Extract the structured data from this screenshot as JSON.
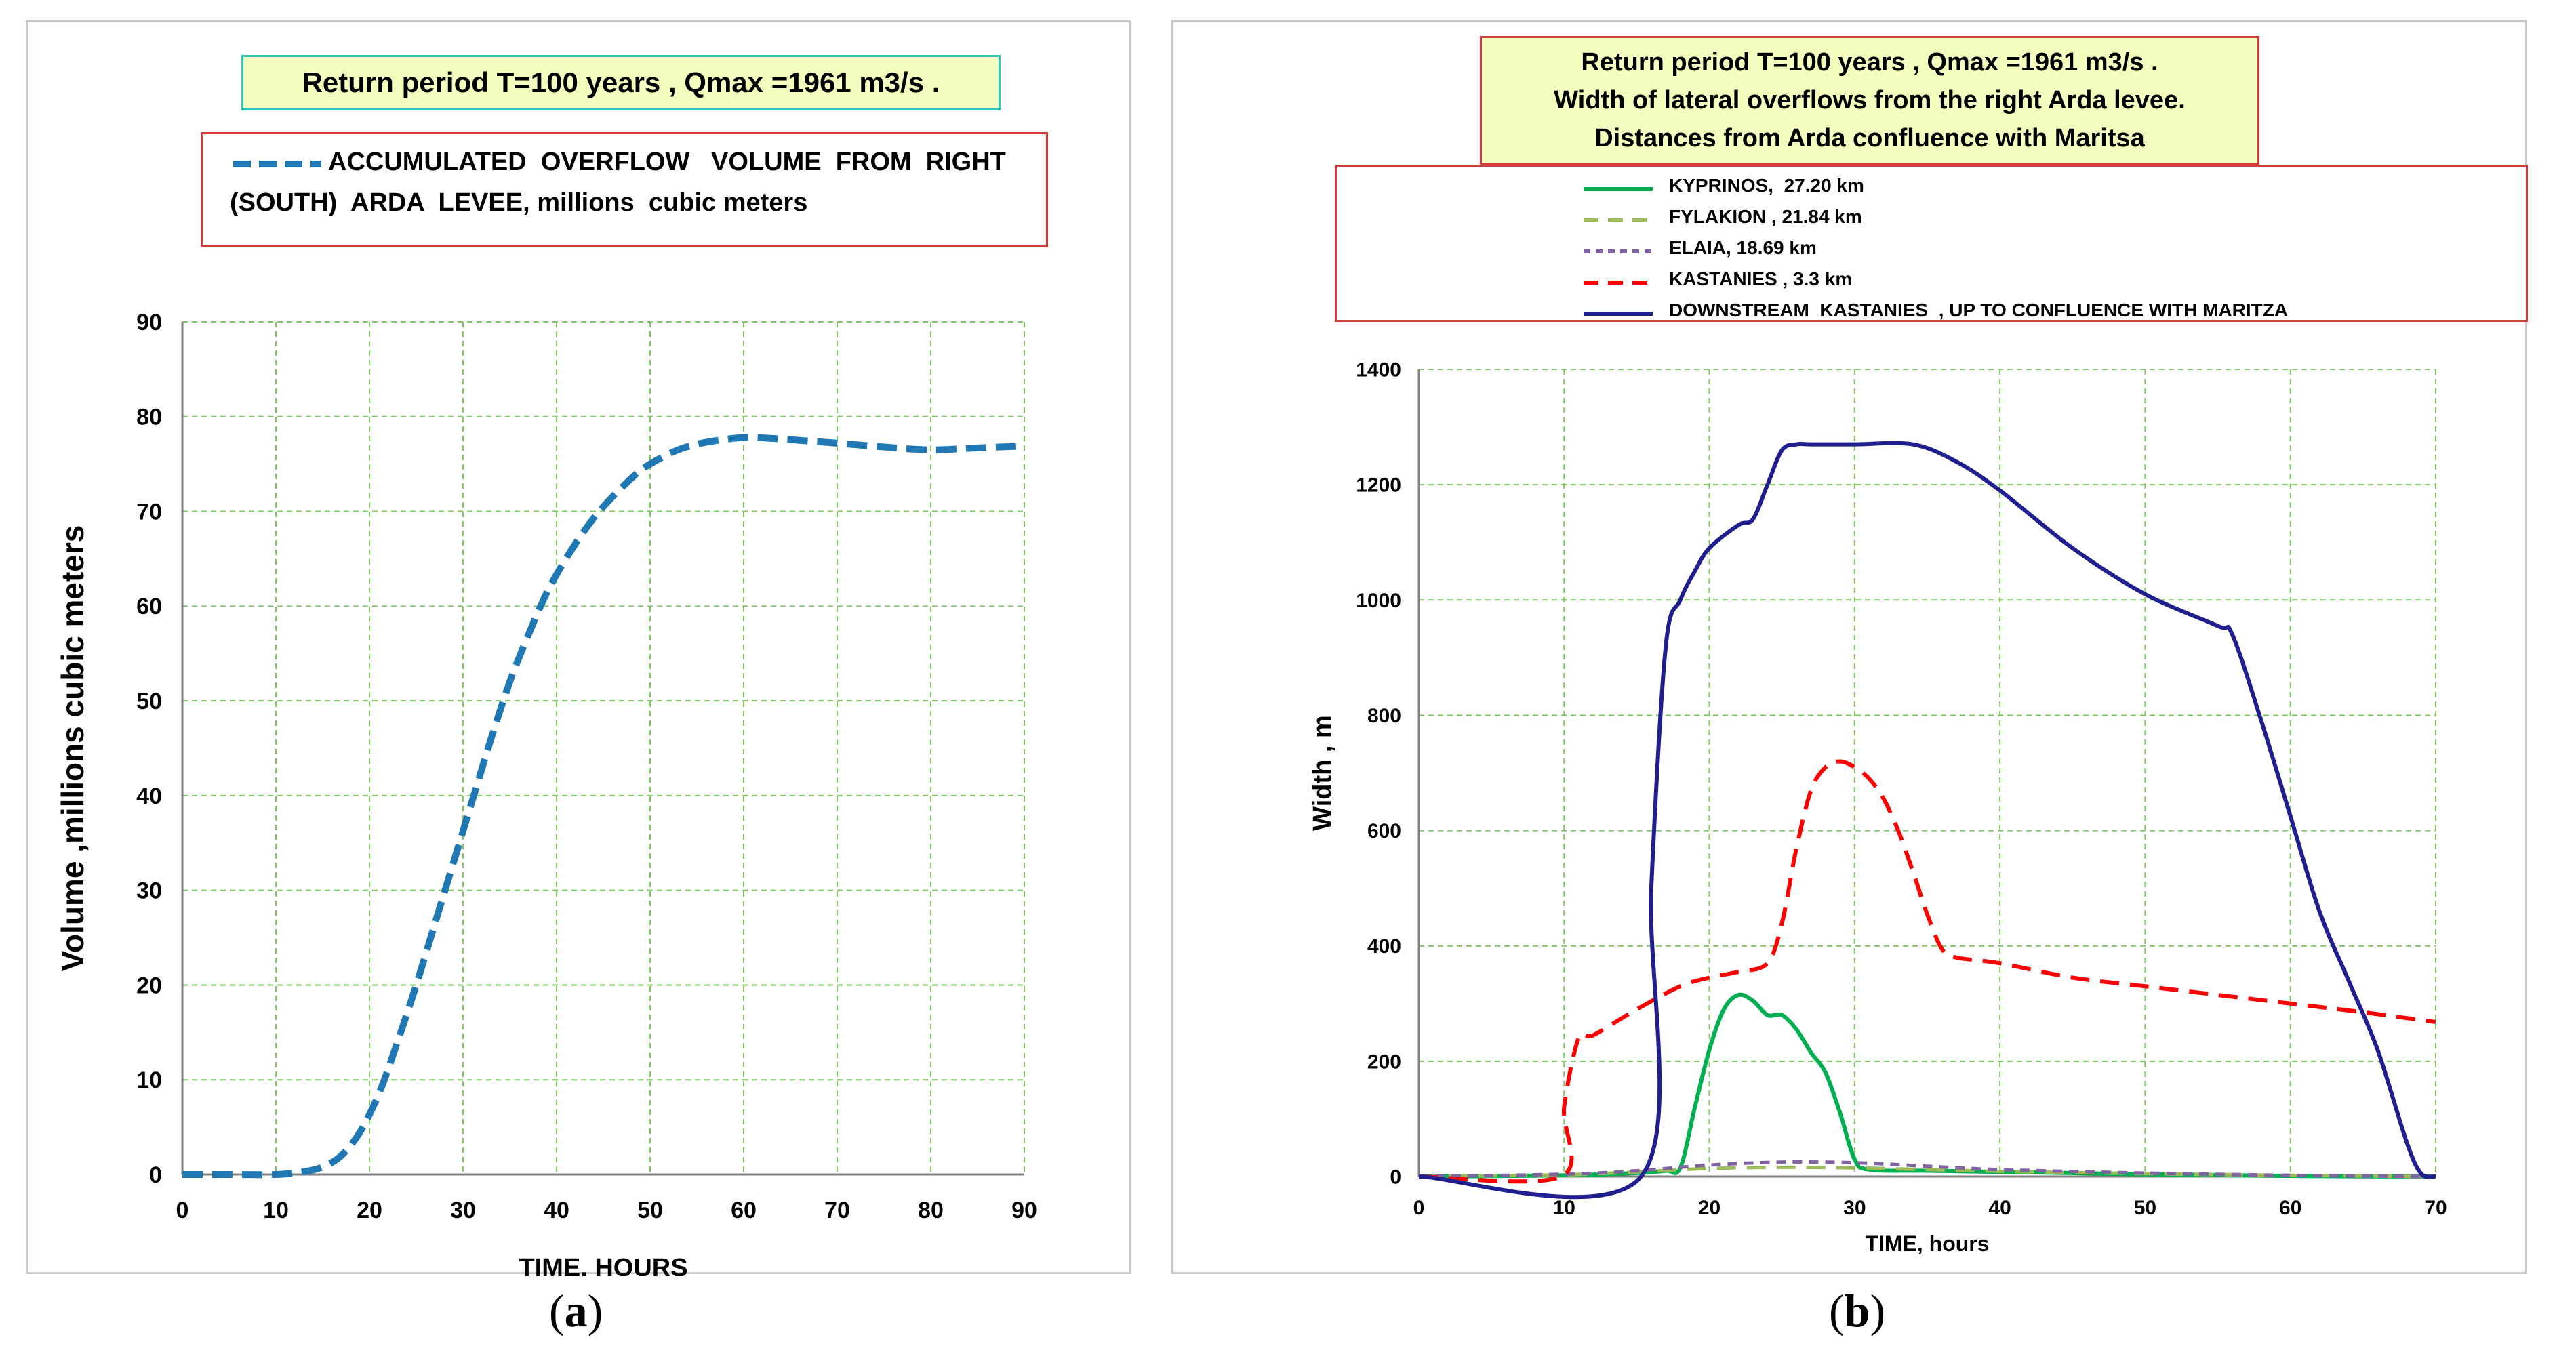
{
  "panel_a": {
    "caption_letter": "a",
    "title": "Return period  T=100 years  , Qmax =1961 m3/s .",
    "legend": {
      "line1": "ACCUMULATED  OVERFLOW   VOLUME  FROM  RIGHT",
      "line2": "(SOUTH)  ARDA  LEVEE, millions  cubic meters"
    }
  },
  "panel_b": {
    "caption_letter": "b",
    "title_lines": [
      "Return period  T=100 years  , Qmax =1961 m3/s .",
      "Width  of  lateral  overflows from the  right   Arda levee.",
      "Distances from  Arda confluence  with Maritsa"
    ]
  },
  "colors": {
    "accent_dashed_blue": "#1f77b4",
    "green": "#00b050",
    "olive": "#9bbb59",
    "purple": "#8064a2",
    "red": "#ff0000",
    "navy": "#1f1f8f",
    "grid": "#7dc95e"
  },
  "chart_data": [
    {
      "type": "line",
      "title": "Return period  T=100 years  , Qmax =1961 m3/s .",
      "xlabel": "TIME, HOURS",
      "ylabel": "Volume  ,millions  cubic meters",
      "xlim": [
        0,
        90
      ],
      "ylim": [
        0,
        90
      ],
      "xticks": [
        0,
        10,
        20,
        30,
        40,
        50,
        60,
        70,
        80,
        90
      ],
      "yticks": [
        0,
        10,
        20,
        30,
        40,
        50,
        60,
        70,
        80,
        90
      ],
      "grid": true,
      "legend_position": "top",
      "series": [
        {
          "name": "ACCUMULATED  OVERFLOW   VOLUME  FROM  RIGHT (SOUTH)  ARDA  LEVEE, millions  cubic meters",
          "style": "dashed",
          "color": "#1f77b4",
          "x": [
            0,
            5,
            10,
            13,
            15,
            17,
            19,
            21,
            23,
            25,
            27,
            29,
            31,
            33,
            35,
            37,
            39,
            41,
            43,
            45,
            48,
            50,
            53,
            56,
            60,
            63,
            66,
            70,
            75,
            80,
            85,
            90
          ],
          "y": [
            0,
            0,
            0,
            0.3,
            0.8,
            2,
            4.5,
            8.5,
            14,
            20,
            26.5,
            33,
            39.5,
            46,
            52,
            57,
            61.5,
            65,
            68,
            70.5,
            73.5,
            75,
            76.5,
            77.3,
            77.8,
            77.7,
            77.5,
            77.2,
            76.8,
            76.5,
            76.7,
            76.9
          ]
        }
      ]
    },
    {
      "type": "line",
      "title": "Return period  T=100 years  , Qmax =1961 m3/s . Width  of  lateral  overflows from the  right   Arda levee. Distances from  Arda confluence  with Maritsa",
      "xlabel": "TIME, hours",
      "ylabel": "Width , m",
      "xlim": [
        0,
        70
      ],
      "ylim": [
        0,
        1400
      ],
      "xticks": [
        0,
        10,
        20,
        30,
        40,
        50,
        60,
        70
      ],
      "yticks": [
        0,
        200,
        400,
        600,
        800,
        1000,
        1200,
        1400
      ],
      "grid": true,
      "legend_position": "top",
      "series": [
        {
          "name": "KYPRINOS,  27.20 km",
          "style": "solid",
          "color": "#00b050",
          "x": [
            0,
            10,
            15,
            17,
            18,
            19,
            20,
            21,
            22,
            23,
            24,
            25,
            26,
            27,
            28,
            29,
            30,
            31,
            35,
            40,
            50,
            60,
            70
          ],
          "y": [
            0,
            2,
            6,
            10,
            15,
            120,
            220,
            290,
            315,
            305,
            280,
            280,
            255,
            215,
            180,
            110,
            30,
            12,
            10,
            8,
            4,
            1,
            0
          ]
        },
        {
          "name": "FYLAKION , 21.84 km",
          "style": "dashed",
          "color": "#9bbb59",
          "x": [
            0,
            10,
            15,
            20,
            25,
            30,
            35,
            40,
            50,
            60,
            70
          ],
          "y": [
            0,
            3,
            8,
            14,
            16,
            15,
            12,
            9,
            5,
            2,
            0
          ]
        },
        {
          "name": "ELAIA, 18.69 km",
          "style": "dashed",
          "color": "#8064a2",
          "x": [
            0,
            10,
            15,
            20,
            25,
            30,
            35,
            40,
            50,
            60,
            70
          ],
          "y": [
            0,
            4,
            10,
            20,
            25,
            24,
            18,
            12,
            6,
            2,
            0
          ]
        },
        {
          "name": "KASTANIES , 3.3 km",
          "style": "dashed",
          "color": "#ff0000",
          "x": [
            0,
            9.8,
            10,
            11,
            12,
            15,
            18,
            20,
            22,
            24,
            25,
            26,
            27,
            28,
            29,
            30,
            31,
            32,
            33,
            34,
            35,
            36,
            37,
            40,
            45,
            50,
            55,
            60,
            65,
            70
          ],
          "y": [
            0,
            0,
            120,
            240,
            245,
            290,
            330,
            345,
            355,
            370,
            440,
            570,
            670,
            710,
            720,
            710,
            690,
            655,
            600,
            530,
            455,
            395,
            380,
            370,
            345,
            330,
            315,
            300,
            285,
            268
          ]
        },
        {
          "name": "DOWNSTREAM  KASTANIES  , UP TO CONFLUENCE WITH MARITZA",
          "style": "solid",
          "color": "#1f1f8f",
          "x": [
            0,
            15.3,
            16,
            17,
            18,
            19,
            20,
            22,
            23,
            24,
            25,
            26,
            27,
            30,
            34,
            37,
            40,
            45,
            50,
            55,
            56,
            58,
            60,
            62,
            64,
            66,
            68,
            69,
            70
          ],
          "y": [
            0,
            0,
            500,
            920,
            1000,
            1050,
            1090,
            1130,
            1140,
            1200,
            1260,
            1270,
            1270,
            1270,
            1270,
            1240,
            1190,
            1090,
            1010,
            955,
            940,
            790,
            625,
            460,
            340,
            220,
            60,
            5,
            0
          ]
        }
      ]
    }
  ]
}
